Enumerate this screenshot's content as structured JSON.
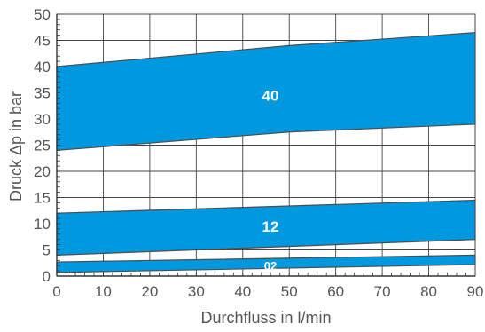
{
  "chart_data": {
    "type": "area",
    "xlabel": "Durchfluss in l/min",
    "ylabel": "Druck Δp in bar",
    "xlim": [
      0,
      90
    ],
    "ylim": [
      0,
      50
    ],
    "x_ticks": [
      "0",
      "10",
      "20",
      "30",
      "40",
      "50",
      "60",
      "70",
      "80",
      "90"
    ],
    "y_ticks": [
      "0",
      "5",
      "10",
      "15",
      "20",
      "25",
      "30",
      "35",
      "40",
      "45",
      "50"
    ],
    "grid": true,
    "band_color": "#0099df",
    "bands": [
      {
        "label": "40",
        "x": [
          0,
          50,
          90
        ],
        "upper": [
          40,
          44,
          46.5
        ],
        "lower": [
          24,
          27.5,
          29
        ],
        "label_at": [
          45,
          34.5
        ]
      },
      {
        "label": "12",
        "x": [
          0,
          90
        ],
        "upper": [
          12,
          14.5
        ],
        "lower": [
          4,
          7
        ],
        "label_at": [
          45,
          9.5
        ]
      },
      {
        "label": "02",
        "x": [
          0,
          90
        ],
        "upper": [
          2.7,
          4
        ],
        "lower": [
          0.7,
          2.2
        ],
        "label_at": [
          45,
          2
        ]
      }
    ]
  }
}
